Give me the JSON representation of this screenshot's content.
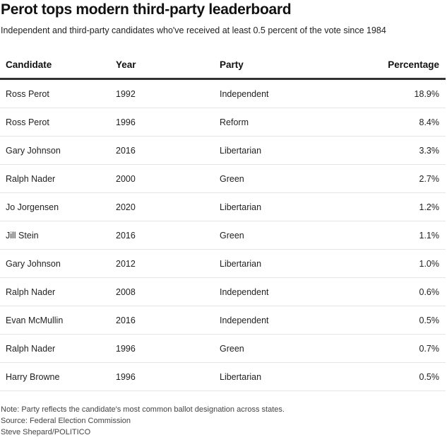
{
  "title": "Perot tops modern third-party leaderboard",
  "subtitle": "Independent and third-party candidates who've received at least 0.5 percent of the vote since 1984",
  "columns": [
    "Candidate",
    "Year",
    "Party",
    "Percentage"
  ],
  "rows": [
    [
      "Ross Perot",
      "1992",
      "Independent",
      "18.9%"
    ],
    [
      "Ross Perot",
      "1996",
      "Reform",
      "8.4%"
    ],
    [
      "Gary Johnson",
      "2016",
      "Libertarian",
      "3.3%"
    ],
    [
      "Ralph Nader",
      "2000",
      "Green",
      "2.7%"
    ],
    [
      "Jo Jorgensen",
      "2020",
      "Libertarian",
      "1.2%"
    ],
    [
      "Jill Stein",
      "2016",
      "Green",
      "1.1%"
    ],
    [
      "Gary Johnson",
      "2012",
      "Libertarian",
      "1.0%"
    ],
    [
      "Ralph Nader",
      "2008",
      "Independent",
      "0.6%"
    ],
    [
      "Evan McMullin",
      "2016",
      "Independent",
      "0.5%"
    ],
    [
      "Ralph Nader",
      "1996",
      "Green",
      "0.7%"
    ],
    [
      "Harry Browne",
      "1996",
      "Libertarian",
      "0.5%"
    ]
  ],
  "footer": {
    "note": "Note: Party reflects the candidate's most common ballot designation across states.",
    "source": "Source: Federal Election Commission",
    "credit": "Steve Shepard/POLITICO"
  }
}
